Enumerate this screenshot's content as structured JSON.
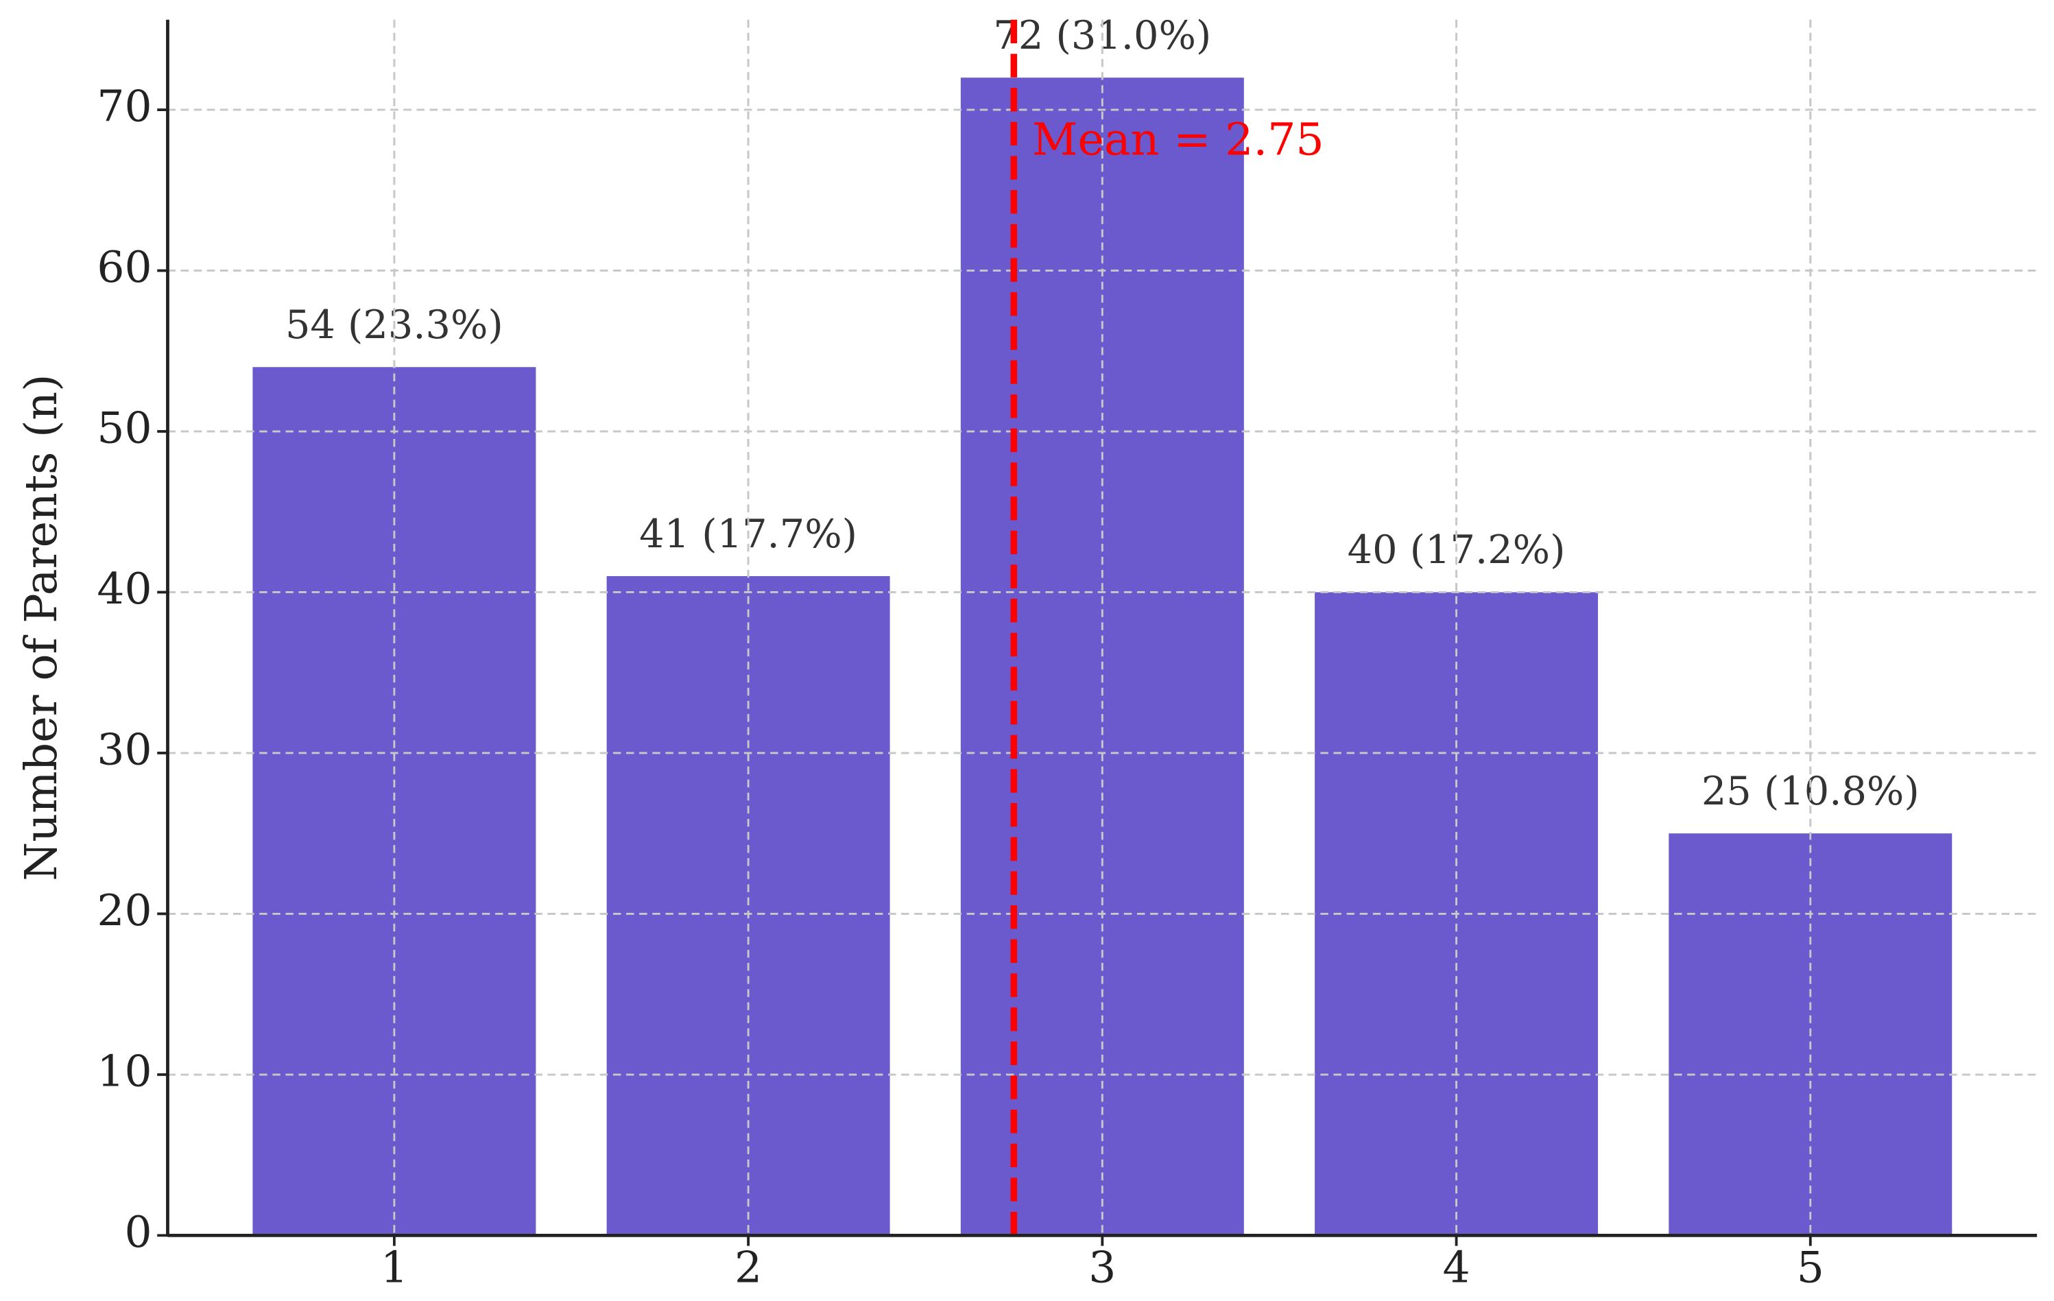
{
  "chart_data": {
    "type": "bar",
    "y_label": "Number of Parents (n)",
    "x": [
      1,
      2,
      3,
      4,
      5
    ],
    "values": [
      54,
      41,
      72,
      40,
      25
    ],
    "value_labels": [
      "54 (23.3%)",
      "41 (17.7%)",
      "72 (31.0%)",
      "40 (17.2%)",
      "25 (10.8%)"
    ],
    "color": "#6a5acd",
    "bar_width": 0.8,
    "xlim": [
      0.36,
      5.64
    ],
    "xticks": [
      1,
      2,
      3,
      4,
      5
    ],
    "ylim": [
      0,
      75.6
    ],
    "yticks": [
      0,
      10,
      20,
      30,
      40,
      50,
      60,
      70
    ],
    "grid": true,
    "mean": 2.75,
    "mean_label": "Mean = 2.75",
    "mean_color": "#ff0000"
  }
}
